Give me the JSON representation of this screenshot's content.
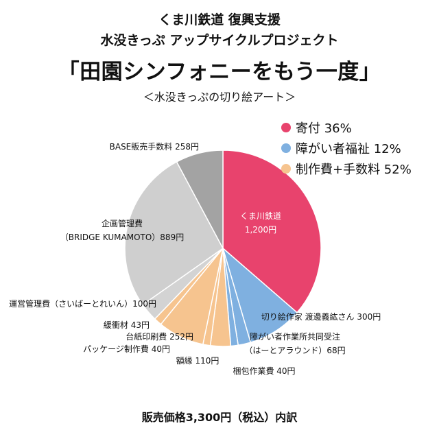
{
  "header": {
    "line1": "くま川鉄道 復興支援",
    "line2": "水没きっぷ アップサイクルプロジェクト",
    "title": "「田園シンフォニーをもう一度」",
    "subtitle": "＜水没きっぷの切り絵アート＞"
  },
  "legend": [
    {
      "label": "寄付 36%",
      "color": "#e8436d"
    },
    {
      "label": "障がい者福祉 12%",
      "color": "#7fb0e0"
    },
    {
      "label": "制作費+手数料 52%",
      "color": "#f6c48f"
    }
  ],
  "footer": "販売価格3,300円（税込）内訳",
  "chart_data": {
    "type": "pie",
    "total": 3300,
    "start": "12 o'clock",
    "direction": "clockwise",
    "slices": [
      {
        "label": "くま川鉄道",
        "value_label": "1,200円",
        "value": 1200,
        "color": "#e8436d"
      },
      {
        "label": "切り絵作家 渡邊義紘さん 300円",
        "value": 300,
        "color": "#7fb0e0"
      },
      {
        "label": "障がい者作業所共同受注",
        "label2": "（はーとアラウンド）68円",
        "value": 68,
        "color": "#7fb0e0"
      },
      {
        "label": "梱包作業費 40円",
        "value": 40,
        "color": "#7fb0e0"
      },
      {
        "label": "額縁 110円",
        "value": 110,
        "color": "#f6c48f"
      },
      {
        "label": "パッケージ制作費 40円",
        "value": 40,
        "color": "#f6c48f"
      },
      {
        "label": "台紙印刷費 252円",
        "value": 252,
        "color": "#f6c48f"
      },
      {
        "label": "緩衝材 43円",
        "value": 43,
        "color": "#f6c48f"
      },
      {
        "label": "運営管理費（さいばーとれいん）100円",
        "value": 100,
        "color": "#d3d3d3"
      },
      {
        "label": "企画管理費",
        "label2": "（BRIDGE KUMAMOTO）889円",
        "value": 889,
        "color": "#cfcfcf"
      },
      {
        "label": "BASE販売手数料 258円",
        "value": 258,
        "color": "#a3a3a3"
      }
    ]
  }
}
